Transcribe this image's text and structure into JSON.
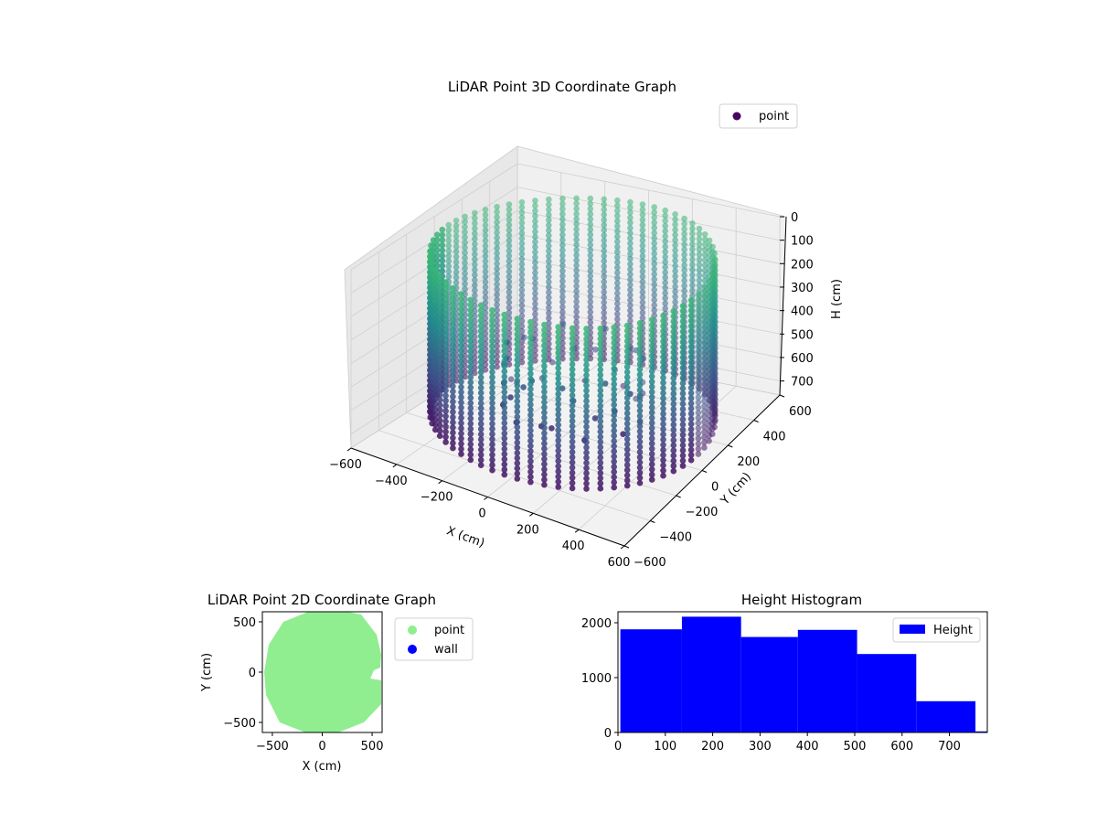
{
  "chart_data": [
    {
      "type": "scatter",
      "projection": "3d",
      "title": "LiDAR Point 3D Coordinate Graph",
      "xlabel": "X (cm)",
      "ylabel": "Y (cm)",
      "zlabel": "H (cm)",
      "x_ticks": [
        "−600",
        "−400",
        "−200",
        "0",
        "200",
        "400",
        "600"
      ],
      "y_ticks": [
        "−600",
        "−400",
        "−200",
        "0",
        "200",
        "400",
        "600"
      ],
      "z_ticks": [
        "0",
        "100",
        "200",
        "300",
        "400",
        "500",
        "600",
        "700"
      ],
      "xlim": [
        -600,
        600
      ],
      "ylim": [
        -600,
        600
      ],
      "zlim": [
        0,
        760
      ],
      "z_inverted": true,
      "legend": {
        "entries": [
          "point"
        ],
        "placement": "upper-right"
      },
      "colormap": "viridis",
      "grid": true,
      "point_color_dark": "#46085c",
      "point_color_light": "#3fbc73",
      "structure": "cylindrical wall of points, radius about 580 cm, heights 0 to 760 cm"
    },
    {
      "type": "scatter",
      "title": "LiDAR Point 2D Coordinate Graph",
      "xlabel": "X (cm)",
      "ylabel": "Y (cm)",
      "x_ticks": [
        "−500",
        "0",
        "500"
      ],
      "y_ticks": [
        "−500",
        "0",
        "500"
      ],
      "xlim": [
        -600,
        600
      ],
      "ylim": [
        -600,
        600
      ],
      "series": [
        {
          "name": "point",
          "color": "#90ee90"
        },
        {
          "name": "wall",
          "color": "#0000ff"
        }
      ],
      "legend": {
        "placement": "outside-right"
      }
    },
    {
      "type": "bar",
      "subtype": "histogram",
      "title": "Height Histogram",
      "x_ticks": [
        "0",
        "100",
        "200",
        "300",
        "400",
        "500",
        "600",
        "700"
      ],
      "y_ticks": [
        "0",
        "1000",
        "2000"
      ],
      "xlim": [
        0,
        780
      ],
      "ylim": [
        0,
        2200
      ],
      "bins": [
        {
          "from": 5,
          "to": 135,
          "value": 1880
        },
        {
          "from": 135,
          "to": 260,
          "value": 2110
        },
        {
          "from": 260,
          "to": 380,
          "value": 1740
        },
        {
          "from": 380,
          "to": 505,
          "value": 1870
        },
        {
          "from": 505,
          "to": 630,
          "value": 1430
        },
        {
          "from": 630,
          "to": 755,
          "value": 570
        },
        {
          "from": 755,
          "to": 780,
          "value": 20
        }
      ],
      "series": [
        {
          "name": "Height",
          "color": "#0000ff"
        }
      ],
      "legend": {
        "placement": "upper-right"
      }
    }
  ]
}
